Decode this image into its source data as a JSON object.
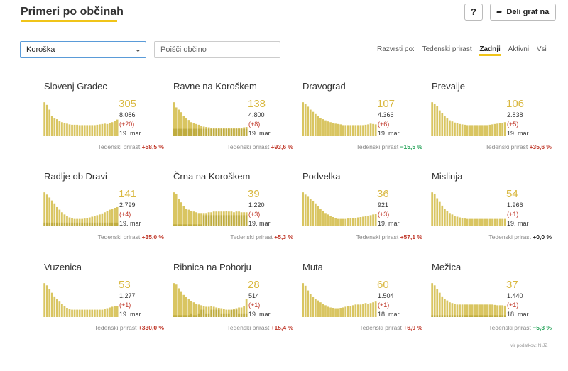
{
  "header": {
    "title": "Primeri po občinah",
    "help_label": "?",
    "share_label": "Deli graf na",
    "share_icon": "share-arrow-icon"
  },
  "controls": {
    "region_selected": "Koroška",
    "search_placeholder": "Poišči občino",
    "sort_label": "Razvrsti po:",
    "sort_options": [
      "Tedenski prirast",
      "Zadnji",
      "Aktivni",
      "Vsi"
    ],
    "sort_active": "Zadnji"
  },
  "growth_label": "Tedenski prirast",
  "colors": {
    "bar_light": "#d9c561",
    "bar_dark": "#a99725",
    "accent": "#f0c419",
    "positive": "#c0392b",
    "negative": "#27a35a"
  },
  "municipalities": [
    {
      "name": "Slovenj Gradec",
      "active": "305",
      "total": "8.086",
      "delta": "(+20)",
      "date": "19. mar",
      "growth": "+58,5 %",
      "trend": "pos",
      "bars": [
        0.92,
        0.85,
        0.72,
        0.55,
        0.48,
        0.46,
        0.41,
        0.38,
        0.36,
        0.34,
        0.32,
        0.31,
        0.31,
        0.31,
        0.3,
        0.3,
        0.3,
        0.3,
        0.3,
        0.3,
        0.3,
        0.31,
        0.32,
        0.33,
        0.34,
        0.33,
        0.36,
        0.38,
        0.42,
        0.45
      ],
      "dark": []
    },
    {
      "name": "Ravne na Koroškem",
      "active": "138",
      "total": "4.800",
      "delta": "(+8)",
      "date": "19. mar",
      "growth": "+93,6 %",
      "trend": "pos",
      "bars": [
        0.92,
        0.78,
        0.72,
        0.65,
        0.55,
        0.48,
        0.44,
        0.38,
        0.36,
        0.33,
        0.31,
        0.28,
        0.26,
        0.25,
        0.24,
        0.23,
        0.22,
        0.22,
        0.22,
        0.22,
        0.22,
        0.22,
        0.22,
        0.22,
        0.22,
        0.22,
        0.22,
        0.22,
        0.24,
        0.25
      ],
      "dark": [
        0.2,
        0.2,
        0.2,
        0.2,
        0.2,
        0.2,
        0.2,
        0.2,
        0.2,
        0.2,
        0.2,
        0.2,
        0.2,
        0.2,
        0.2,
        0.2,
        0.2,
        0.2,
        0.2,
        0.2,
        0.2,
        0.2,
        0.2,
        0.2,
        0.2,
        0.2,
        0.2,
        0.2,
        0.2,
        0.2
      ]
    },
    {
      "name": "Dravograd",
      "active": "107",
      "total": "4.366",
      "delta": "(+6)",
      "date": "19. mar",
      "growth": "−15,5 %",
      "trend": "neg",
      "bars": [
        0.92,
        0.88,
        0.8,
        0.72,
        0.66,
        0.6,
        0.55,
        0.5,
        0.46,
        0.43,
        0.4,
        0.38,
        0.36,
        0.34,
        0.33,
        0.32,
        0.3,
        0.3,
        0.3,
        0.3,
        0.3,
        0.3,
        0.3,
        0.3,
        0.3,
        0.31,
        0.32,
        0.34,
        0.33,
        0.32
      ],
      "dark": []
    },
    {
      "name": "Prevalje",
      "active": "106",
      "total": "2.838",
      "delta": "(+5)",
      "date": "19. mar",
      "growth": "+35,6 %",
      "trend": "pos",
      "bars": [
        0.92,
        0.88,
        0.82,
        0.7,
        0.62,
        0.55,
        0.48,
        0.43,
        0.4,
        0.37,
        0.35,
        0.33,
        0.32,
        0.31,
        0.3,
        0.3,
        0.3,
        0.3,
        0.3,
        0.3,
        0.3,
        0.3,
        0.3,
        0.31,
        0.32,
        0.33,
        0.34,
        0.35,
        0.36,
        0.38
      ],
      "dark": []
    },
    {
      "name": "Radlje ob Dravi",
      "active": "141",
      "total": "2.799",
      "delta": "(+4)",
      "date": "19. mar",
      "growth": "+35,0 %",
      "trend": "pos",
      "bars": [
        0.92,
        0.86,
        0.78,
        0.7,
        0.62,
        0.52,
        0.45,
        0.38,
        0.32,
        0.28,
        0.24,
        0.22,
        0.2,
        0.2,
        0.2,
        0.2,
        0.21,
        0.22,
        0.24,
        0.26,
        0.28,
        0.3,
        0.32,
        0.35,
        0.38,
        0.42,
        0.45,
        0.48,
        0.5,
        0.52
      ],
      "dark": [
        0.1,
        0.1,
        0.1,
        0.1,
        0.1,
        0.1,
        0.1,
        0.1,
        0.1,
        0.1,
        0.1,
        0.1,
        0.1,
        0.1,
        0.1,
        0.1,
        0.1,
        0.1,
        0.1,
        0.1,
        0.1,
        0.1,
        0.1,
        0.1,
        0.1,
        0.1,
        0.1,
        0.1,
        0.1,
        0.1
      ]
    },
    {
      "name": "Črna na Koroškem",
      "active": "39",
      "total": "1.220",
      "delta": "(+3)",
      "date": "19. mar",
      "growth": "+5,3 %",
      "trend": "pos",
      "bars": [
        0.92,
        0.88,
        0.75,
        0.65,
        0.55,
        0.48,
        0.45,
        0.42,
        0.4,
        0.38,
        0.36,
        0.36,
        0.36,
        0.36,
        0.38,
        0.38,
        0.4,
        0.4,
        0.4,
        0.4,
        0.4,
        0.42,
        0.4,
        0.4,
        0.38,
        0.4,
        0.4,
        0.38,
        0.38,
        0.38
      ],
      "dark": [
        0.05,
        0.05,
        0.05,
        0.05,
        0.05,
        0.05,
        0.05,
        0.05,
        0.05,
        0.05,
        0.05,
        0.05,
        0.3,
        0.3,
        0.3,
        0.3,
        0.3,
        0.3,
        0.3,
        0.3,
        0.3,
        0.3,
        0.3,
        0.3,
        0.3,
        0.3,
        0.3,
        0.3,
        0.3,
        0.3
      ]
    },
    {
      "name": "Podvelka",
      "active": "36",
      "total": "921",
      "delta": "(+3)",
      "date": "19. mar",
      "growth": "+57,1 %",
      "trend": "pos",
      "bars": [
        0.92,
        0.86,
        0.8,
        0.74,
        0.68,
        0.62,
        0.55,
        0.48,
        0.42,
        0.36,
        0.32,
        0.28,
        0.25,
        0.22,
        0.2,
        0.2,
        0.2,
        0.2,
        0.21,
        0.22,
        0.22,
        0.23,
        0.24,
        0.25,
        0.26,
        0.27,
        0.28,
        0.3,
        0.32,
        0.33
      ],
      "dark": []
    },
    {
      "name": "Mislinja",
      "active": "54",
      "total": "1.966",
      "delta": "(+1)",
      "date": "19. mar",
      "growth": "+0,0 %",
      "trend": "zero",
      "bars": [
        0.92,
        0.88,
        0.76,
        0.66,
        0.56,
        0.48,
        0.42,
        0.36,
        0.32,
        0.28,
        0.26,
        0.24,
        0.22,
        0.21,
        0.2,
        0.2,
        0.2,
        0.2,
        0.2,
        0.2,
        0.2,
        0.2,
        0.2,
        0.2,
        0.2,
        0.2,
        0.2,
        0.2,
        0.2,
        0.2
      ],
      "dark": []
    },
    {
      "name": "Vuzenica",
      "active": "53",
      "total": "1.277",
      "delta": "(+1)",
      "date": "19. mar",
      "growth": "+330,0 %",
      "trend": "pos",
      "bars": [
        0.92,
        0.86,
        0.76,
        0.66,
        0.56,
        0.48,
        0.42,
        0.36,
        0.3,
        0.25,
        0.22,
        0.2,
        0.2,
        0.2,
        0.2,
        0.2,
        0.2,
        0.2,
        0.2,
        0.2,
        0.2,
        0.2,
        0.2,
        0.2,
        0.22,
        0.24,
        0.26,
        0.28,
        0.3,
        0.3
      ],
      "dark": []
    },
    {
      "name": "Ribnica na Pohorju",
      "active": "28",
      "total": "514",
      "delta": "(+1)",
      "date": "19. mar",
      "growth": "+15,4 %",
      "trend": "pos",
      "bars": [
        0.92,
        0.88,
        0.78,
        0.7,
        0.6,
        0.54,
        0.48,
        0.44,
        0.4,
        0.36,
        0.34,
        0.32,
        0.3,
        0.28,
        0.28,
        0.3,
        0.28,
        0.26,
        0.25,
        0.24,
        0.22,
        0.2,
        0.2,
        0.2,
        0.22,
        0.24,
        0.26,
        0.26,
        0.3,
        0.5
      ],
      "dark": [
        0.05,
        0.05,
        0.05,
        0.05,
        0.05,
        0.05,
        0.05,
        0.1,
        0.05,
        0.05,
        0.1,
        0.2,
        0.2,
        0.1,
        0.1,
        0.2,
        0.2,
        0.2,
        0.2,
        0.1,
        0.1,
        0.1,
        0.1,
        0.2,
        0.2,
        0.2,
        0.1,
        0.1,
        0.1,
        0.1
      ]
    },
    {
      "name": "Muta",
      "active": "60",
      "total": "1.504",
      "delta": "(+1)",
      "date": "18. mar",
      "growth": "+6,9 %",
      "trend": "pos",
      "bars": [
        0.92,
        0.85,
        0.72,
        0.62,
        0.55,
        0.5,
        0.45,
        0.4,
        0.36,
        0.32,
        0.28,
        0.26,
        0.25,
        0.24,
        0.24,
        0.25,
        0.26,
        0.28,
        0.3,
        0.3,
        0.32,
        0.34,
        0.34,
        0.34,
        0.35,
        0.38,
        0.36,
        0.38,
        0.4,
        0.42
      ],
      "dark": []
    },
    {
      "name": "Mežica",
      "active": "37",
      "total": "1.440",
      "delta": "(+1)",
      "date": "18. mar",
      "growth": "−5,3 %",
      "trend": "neg",
      "bars": [
        0.92,
        0.86,
        0.76,
        0.66,
        0.56,
        0.5,
        0.45,
        0.4,
        0.38,
        0.36,
        0.34,
        0.34,
        0.34,
        0.34,
        0.34,
        0.34,
        0.34,
        0.34,
        0.34,
        0.34,
        0.34,
        0.34,
        0.34,
        0.34,
        0.34,
        0.33,
        0.32,
        0.32,
        0.32,
        0.31
      ],
      "dark": [
        0.05,
        0.05,
        0.05,
        0.05,
        0.05,
        0.05,
        0.05,
        0.05,
        0.05,
        0.05,
        0.05,
        0.05,
        0.05,
        0.05,
        0.05,
        0.05,
        0.05,
        0.05,
        0.05,
        0.05,
        0.05,
        0.05,
        0.05,
        0.05,
        0.05,
        0.05,
        0.05,
        0.05,
        0.05,
        0.05
      ]
    }
  ],
  "footer": {
    "source": "vir podatkov: NIJZ"
  }
}
